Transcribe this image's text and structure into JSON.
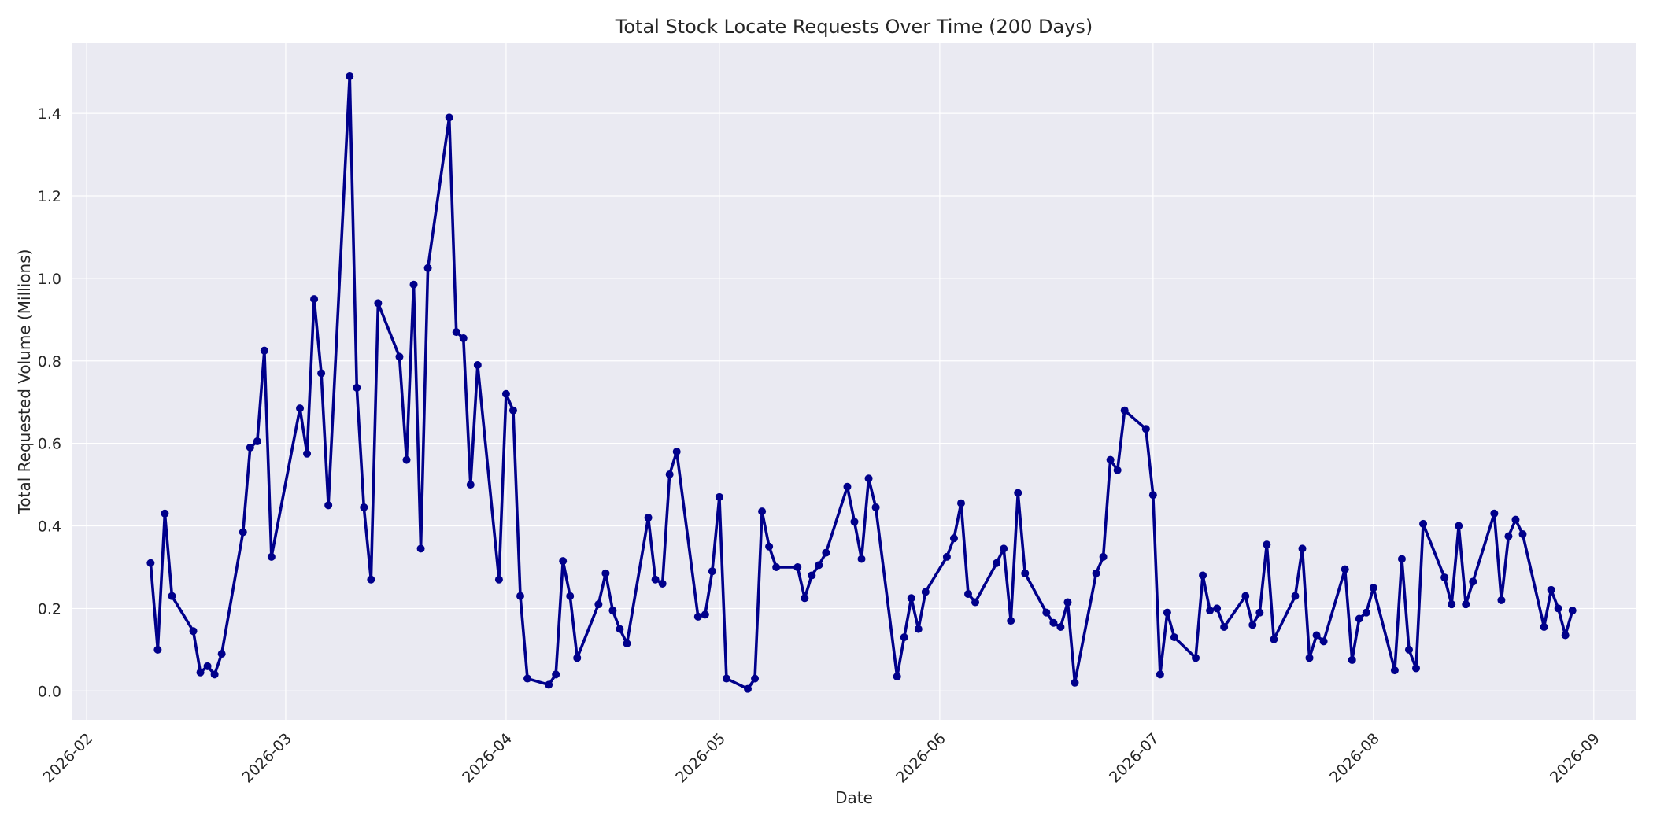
{
  "chart_data": {
    "type": "line",
    "title": "Total Stock Locate Requests Over Time (200 Days)",
    "xlabel": "Date",
    "ylabel": "Total Requested Volume (Millions)",
    "xlim": [
      "2026-01-30",
      "2026-09-07"
    ],
    "ylim": [
      -0.07,
      1.57
    ],
    "x_ticks": [
      "2026-02-01",
      "2026-03-01",
      "2026-04-01",
      "2026-05-01",
      "2026-06-01",
      "2026-07-01",
      "2026-08-01",
      "2026-09-01"
    ],
    "x_tick_labels": [
      "2026-02",
      "2026-03",
      "2026-04",
      "2026-05",
      "2026-06",
      "2026-07",
      "2026-08",
      "2026-09"
    ],
    "y_ticks": [
      0.0,
      0.2,
      0.4,
      0.6,
      0.8,
      1.0,
      1.2,
      1.4
    ],
    "y_tick_labels": [
      "0.0",
      "0.2",
      "0.4",
      "0.6",
      "0.8",
      "1.0",
      "1.2",
      "1.4"
    ],
    "grid": true,
    "colors": {
      "line": "#00008b",
      "background": "#eaeaf2",
      "grid": "#ffffff",
      "text": "#262626"
    },
    "series": [
      {
        "marker": "circle",
        "points": [
          [
            "2026-02-10",
            0.31
          ],
          [
            "2026-02-11",
            0.1
          ],
          [
            "2026-02-12",
            0.43
          ],
          [
            "2026-02-13",
            0.23
          ],
          [
            "2026-02-16",
            0.145
          ],
          [
            "2026-02-17",
            0.045
          ],
          [
            "2026-02-18",
            0.06
          ],
          [
            "2026-02-19",
            0.04
          ],
          [
            "2026-02-20",
            0.09
          ],
          [
            "2026-02-23",
            0.385
          ],
          [
            "2026-02-24",
            0.59
          ],
          [
            "2026-02-25",
            0.605
          ],
          [
            "2026-02-26",
            0.825
          ],
          [
            "2026-02-27",
            0.325
          ],
          [
            "2026-03-03",
            0.685
          ],
          [
            "2026-03-04",
            0.575
          ],
          [
            "2026-03-05",
            0.95
          ],
          [
            "2026-03-06",
            0.77
          ],
          [
            "2026-03-07",
            0.45
          ],
          [
            "2026-03-10",
            1.49
          ],
          [
            "2026-03-11",
            0.735
          ],
          [
            "2026-03-12",
            0.445
          ],
          [
            "2026-03-13",
            0.27
          ],
          [
            "2026-03-14",
            0.94
          ],
          [
            "2026-03-17",
            0.81
          ],
          [
            "2026-03-18",
            0.56
          ],
          [
            "2026-03-19",
            0.985
          ],
          [
            "2026-03-20",
            0.345
          ],
          [
            "2026-03-21",
            1.025
          ],
          [
            "2026-03-24",
            1.39
          ],
          [
            "2026-03-25",
            0.87
          ],
          [
            "2026-03-26",
            0.855
          ],
          [
            "2026-03-27",
            0.5
          ],
          [
            "2026-03-28",
            0.79
          ],
          [
            "2026-03-31",
            0.27
          ],
          [
            "2026-04-01",
            0.72
          ],
          [
            "2026-04-02",
            0.68
          ],
          [
            "2026-04-03",
            0.23
          ],
          [
            "2026-04-04",
            0.03
          ],
          [
            "2026-04-07",
            0.015
          ],
          [
            "2026-04-08",
            0.04
          ],
          [
            "2026-04-09",
            0.315
          ],
          [
            "2026-04-10",
            0.23
          ],
          [
            "2026-04-11",
            0.08
          ],
          [
            "2026-04-14",
            0.21
          ],
          [
            "2026-04-15",
            0.285
          ],
          [
            "2026-04-16",
            0.195
          ],
          [
            "2026-04-17",
            0.15
          ],
          [
            "2026-04-18",
            0.115
          ],
          [
            "2026-04-21",
            0.42
          ],
          [
            "2026-04-22",
            0.27
          ],
          [
            "2026-04-23",
            0.26
          ],
          [
            "2026-04-24",
            0.525
          ],
          [
            "2026-04-25",
            0.58
          ],
          [
            "2026-04-28",
            0.18
          ],
          [
            "2026-04-29",
            0.185
          ],
          [
            "2026-04-30",
            0.29
          ],
          [
            "2026-05-01",
            0.47
          ],
          [
            "2026-05-02",
            0.03
          ],
          [
            "2026-05-05",
            0.005
          ],
          [
            "2026-05-06",
            0.03
          ],
          [
            "2026-05-07",
            0.435
          ],
          [
            "2026-05-08",
            0.35
          ],
          [
            "2026-05-09",
            0.3
          ],
          [
            "2026-05-12",
            0.3
          ],
          [
            "2026-05-13",
            0.225
          ],
          [
            "2026-05-14",
            0.28
          ],
          [
            "2026-05-15",
            0.305
          ],
          [
            "2026-05-16",
            0.335
          ],
          [
            "2026-05-19",
            0.495
          ],
          [
            "2026-05-20",
            0.41
          ],
          [
            "2026-05-21",
            0.32
          ],
          [
            "2026-05-22",
            0.515
          ],
          [
            "2026-05-23",
            0.445
          ],
          [
            "2026-05-26",
            0.035
          ],
          [
            "2026-05-27",
            0.13
          ],
          [
            "2026-05-28",
            0.225
          ],
          [
            "2026-05-29",
            0.15
          ],
          [
            "2026-05-30",
            0.24
          ],
          [
            "2026-06-02",
            0.325
          ],
          [
            "2026-06-03",
            0.37
          ],
          [
            "2026-06-04",
            0.455
          ],
          [
            "2026-06-05",
            0.235
          ],
          [
            "2026-06-06",
            0.215
          ],
          [
            "2026-06-09",
            0.31
          ],
          [
            "2026-06-10",
            0.345
          ],
          [
            "2026-06-11",
            0.17
          ],
          [
            "2026-06-12",
            0.48
          ],
          [
            "2026-06-13",
            0.285
          ],
          [
            "2026-06-16",
            0.19
          ],
          [
            "2026-06-17",
            0.165
          ],
          [
            "2026-06-18",
            0.155
          ],
          [
            "2026-06-19",
            0.215
          ],
          [
            "2026-06-20",
            0.02
          ],
          [
            "2026-06-23",
            0.285
          ],
          [
            "2026-06-24",
            0.325
          ],
          [
            "2026-06-25",
            0.56
          ],
          [
            "2026-06-26",
            0.535
          ],
          [
            "2026-06-27",
            0.68
          ],
          [
            "2026-06-30",
            0.635
          ],
          [
            "2026-07-01",
            0.475
          ],
          [
            "2026-07-02",
            0.04
          ],
          [
            "2026-07-03",
            0.19
          ],
          [
            "2026-07-04",
            0.13
          ],
          [
            "2026-07-07",
            0.08
          ],
          [
            "2026-07-08",
            0.28
          ],
          [
            "2026-07-09",
            0.195
          ],
          [
            "2026-07-10",
            0.2
          ],
          [
            "2026-07-11",
            0.155
          ],
          [
            "2026-07-14",
            0.23
          ],
          [
            "2026-07-15",
            0.16
          ],
          [
            "2026-07-16",
            0.19
          ],
          [
            "2026-07-17",
            0.355
          ],
          [
            "2026-07-18",
            0.125
          ],
          [
            "2026-07-21",
            0.23
          ],
          [
            "2026-07-22",
            0.345
          ],
          [
            "2026-07-23",
            0.08
          ],
          [
            "2026-07-24",
            0.135
          ],
          [
            "2026-07-25",
            0.12
          ],
          [
            "2026-07-28",
            0.295
          ],
          [
            "2026-07-29",
            0.075
          ],
          [
            "2026-07-30",
            0.175
          ],
          [
            "2026-07-31",
            0.19
          ],
          [
            "2026-08-01",
            0.25
          ],
          [
            "2026-08-04",
            0.05
          ],
          [
            "2026-08-05",
            0.32
          ],
          [
            "2026-08-06",
            0.1
          ],
          [
            "2026-08-07",
            0.055
          ],
          [
            "2026-08-08",
            0.405
          ],
          [
            "2026-08-11",
            0.275
          ],
          [
            "2026-08-12",
            0.21
          ],
          [
            "2026-08-13",
            0.4
          ],
          [
            "2026-08-14",
            0.21
          ],
          [
            "2026-08-15",
            0.265
          ],
          [
            "2026-08-18",
            0.43
          ],
          [
            "2026-08-19",
            0.22
          ],
          [
            "2026-08-20",
            0.375
          ],
          [
            "2026-08-21",
            0.415
          ],
          [
            "2026-08-22",
            0.38
          ],
          [
            "2026-08-25",
            0.155
          ],
          [
            "2026-08-26",
            0.245
          ],
          [
            "2026-08-27",
            0.2
          ],
          [
            "2026-08-28",
            0.135
          ],
          [
            "2026-08-29",
            0.195
          ]
        ]
      }
    ]
  }
}
